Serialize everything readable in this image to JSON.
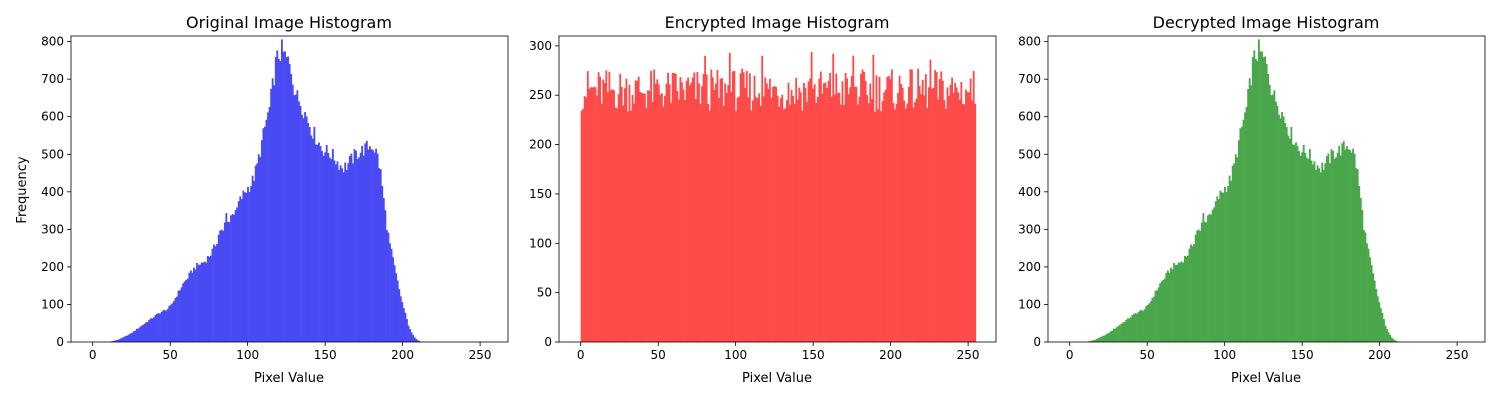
{
  "chart_data": [
    {
      "type": "bar",
      "title": "Original Image Histogram",
      "xlabel": "Pixel Value",
      "ylabel": "Frequency",
      "xlim": [
        -14,
        268
      ],
      "ylim": [
        0,
        815
      ],
      "xticks": [
        0,
        50,
        100,
        150,
        200,
        250
      ],
      "yticks": [
        0,
        100,
        200,
        300,
        400,
        500,
        600,
        700,
        800
      ],
      "color": "#4a4af5",
      "bins": 256,
      "grid": false,
      "points": [
        [
          10,
          0
        ],
        [
          12,
          2
        ],
        [
          14,
          4
        ],
        [
          16,
          6
        ],
        [
          18,
          10
        ],
        [
          20,
          14
        ],
        [
          22,
          18
        ],
        [
          24,
          22
        ],
        [
          26,
          28
        ],
        [
          28,
          34
        ],
        [
          30,
          40
        ],
        [
          32,
          46
        ],
        [
          34,
          52
        ],
        [
          36,
          58
        ],
        [
          38,
          64
        ],
        [
          40,
          70
        ],
        [
          42,
          76
        ],
        [
          44,
          80
        ],
        [
          46,
          84
        ],
        [
          48,
          88
        ],
        [
          50,
          96
        ],
        [
          52,
          110
        ],
        [
          54,
          125
        ],
        [
          56,
          140
        ],
        [
          58,
          155
        ],
        [
          60,
          165
        ],
        [
          62,
          178
        ],
        [
          64,
          190
        ],
        [
          66,
          200
        ],
        [
          68,
          205
        ],
        [
          70,
          210
        ],
        [
          72,
          215
        ],
        [
          74,
          225
        ],
        [
          76,
          235
        ],
        [
          78,
          250
        ],
        [
          80,
          270
        ],
        [
          82,
          300
        ],
        [
          84,
          290
        ],
        [
          86,
          340
        ],
        [
          88,
          320
        ],
        [
          90,
          350
        ],
        [
          92,
          340
        ],
        [
          94,
          370
        ],
        [
          96,
          385
        ],
        [
          98,
          400
        ],
        [
          100,
          410
        ],
        [
          102,
          420
        ],
        [
          104,
          440
        ],
        [
          106,
          470
        ],
        [
          108,
          510
        ],
        [
          110,
          550
        ],
        [
          112,
          590
        ],
        [
          114,
          620
        ],
        [
          116,
          680
        ],
        [
          118,
          740
        ],
        [
          120,
          765
        ],
        [
          122,
          775
        ],
        [
          124,
          760
        ],
        [
          126,
          745
        ],
        [
          128,
          725
        ],
        [
          130,
          680
        ],
        [
          132,
          650
        ],
        [
          134,
          640
        ],
        [
          136,
          620
        ],
        [
          138,
          600
        ],
        [
          140,
          580
        ],
        [
          142,
          560
        ],
        [
          144,
          545
        ],
        [
          146,
          530
        ],
        [
          148,
          515
        ],
        [
          150,
          510
        ],
        [
          152,
          505
        ],
        [
          154,
          500
        ],
        [
          156,
          490
        ],
        [
          158,
          480
        ],
        [
          160,
          470
        ],
        [
          162,
          465
        ],
        [
          164,
          470
        ],
        [
          166,
          480
        ],
        [
          168,
          490
        ],
        [
          170,
          500
        ],
        [
          172,
          505
        ],
        [
          174,
          510
        ],
        [
          176,
          515
        ],
        [
          178,
          520
        ],
        [
          180,
          525
        ],
        [
          182,
          515
        ],
        [
          184,
          495
        ],
        [
          186,
          450
        ],
        [
          188,
          380
        ],
        [
          190,
          310
        ],
        [
          192,
          260
        ],
        [
          194,
          220
        ],
        [
          196,
          180
        ],
        [
          198,
          140
        ],
        [
          200,
          105
        ],
        [
          202,
          75
        ],
        [
          204,
          45
        ],
        [
          206,
          25
        ],
        [
          208,
          12
        ],
        [
          210,
          5
        ],
        [
          212,
          1
        ],
        [
          214,
          0
        ]
      ]
    },
    {
      "type": "bar",
      "title": "Encrypted Image Histogram",
      "xlabel": "Pixel Value",
      "ylabel": "",
      "xlim": [
        -14,
        268
      ],
      "ylim": [
        0,
        310
      ],
      "xticks": [
        0,
        50,
        100,
        150,
        200,
        250
      ],
      "yticks": [
        0,
        50,
        100,
        150,
        200,
        250,
        300
      ],
      "color": "#ff4a4a",
      "bins": 256,
      "grid": false,
      "base": 255,
      "amplitude": 22,
      "peaks": [
        [
          80,
          290
        ],
        [
          96,
          293
        ],
        [
          117,
          290
        ],
        [
          149,
          294
        ],
        [
          163,
          292
        ],
        [
          176,
          290
        ],
        [
          189,
          291
        ],
        [
          226,
          286
        ]
      ]
    },
    {
      "type": "bar",
      "title": "Decrypted Image Histogram",
      "xlabel": "Pixel Value",
      "ylabel": "",
      "xlim": [
        -14,
        268
      ],
      "ylim": [
        0,
        815
      ],
      "xticks": [
        0,
        50,
        100,
        150,
        200,
        250
      ],
      "yticks": [
        0,
        100,
        200,
        300,
        400,
        500,
        600,
        700,
        800
      ],
      "color": "#4aa64a",
      "bins": 256,
      "grid": false,
      "same_as": 0
    }
  ]
}
